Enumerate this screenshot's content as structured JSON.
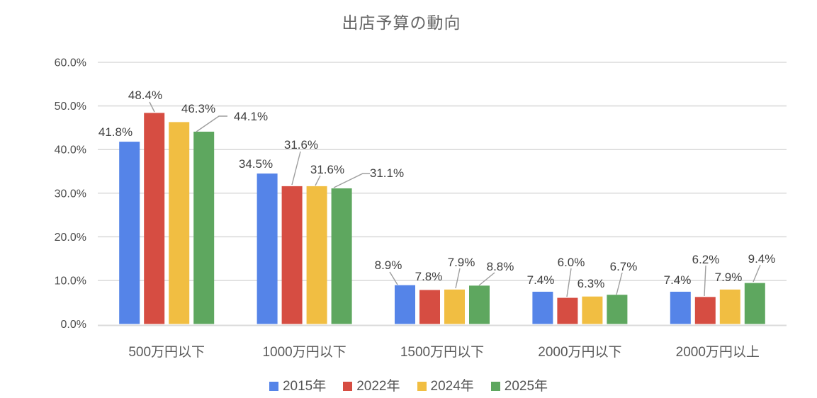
{
  "chart_data": {
    "type": "bar",
    "title": "出店予算の動向",
    "categories": [
      "500万円以下",
      "1000万円以下",
      "1500万円以下",
      "2000万円以下",
      "2000万円以上"
    ],
    "series": [
      {
        "name": "2015年",
        "color": "#5584E8",
        "values": [
          41.8,
          34.5,
          8.9,
          7.4,
          7.4
        ]
      },
      {
        "name": "2022年",
        "color": "#D64D42",
        "values": [
          48.4,
          31.6,
          7.8,
          6.0,
          6.2
        ]
      },
      {
        "name": "2024年",
        "color": "#F1BE42",
        "values": [
          46.3,
          31.6,
          7.9,
          6.3,
          7.9
        ]
      },
      {
        "name": "2025年",
        "color": "#5EA75F",
        "values": [
          44.1,
          31.1,
          8.8,
          6.7,
          9.4
        ]
      }
    ],
    "y_ticks": [
      {
        "label": "0.0%",
        "value": 0
      },
      {
        "label": "10.0%",
        "value": 10
      },
      {
        "label": "20.0%",
        "value": 20
      },
      {
        "label": "30.0%",
        "value": 30
      },
      {
        "label": "40.0%",
        "value": 40
      },
      {
        "label": "50.0%",
        "value": 50
      },
      {
        "label": "60.0%",
        "value": 60
      }
    ],
    "ylim": [
      0,
      60
    ],
    "grid": true,
    "data_labels": true,
    "data_label_format": "0.0%",
    "legend_position": "bottom",
    "colors": {
      "title_text": "#666666",
      "axis_text": "#4D4D4D",
      "category_text": "#595959",
      "data_label_text": "#3F3F3F",
      "legend_text": "#555555",
      "gridline": "#DBDBDB",
      "leader_line": "#9E9E9E",
      "background": "#FFFFFF"
    }
  }
}
